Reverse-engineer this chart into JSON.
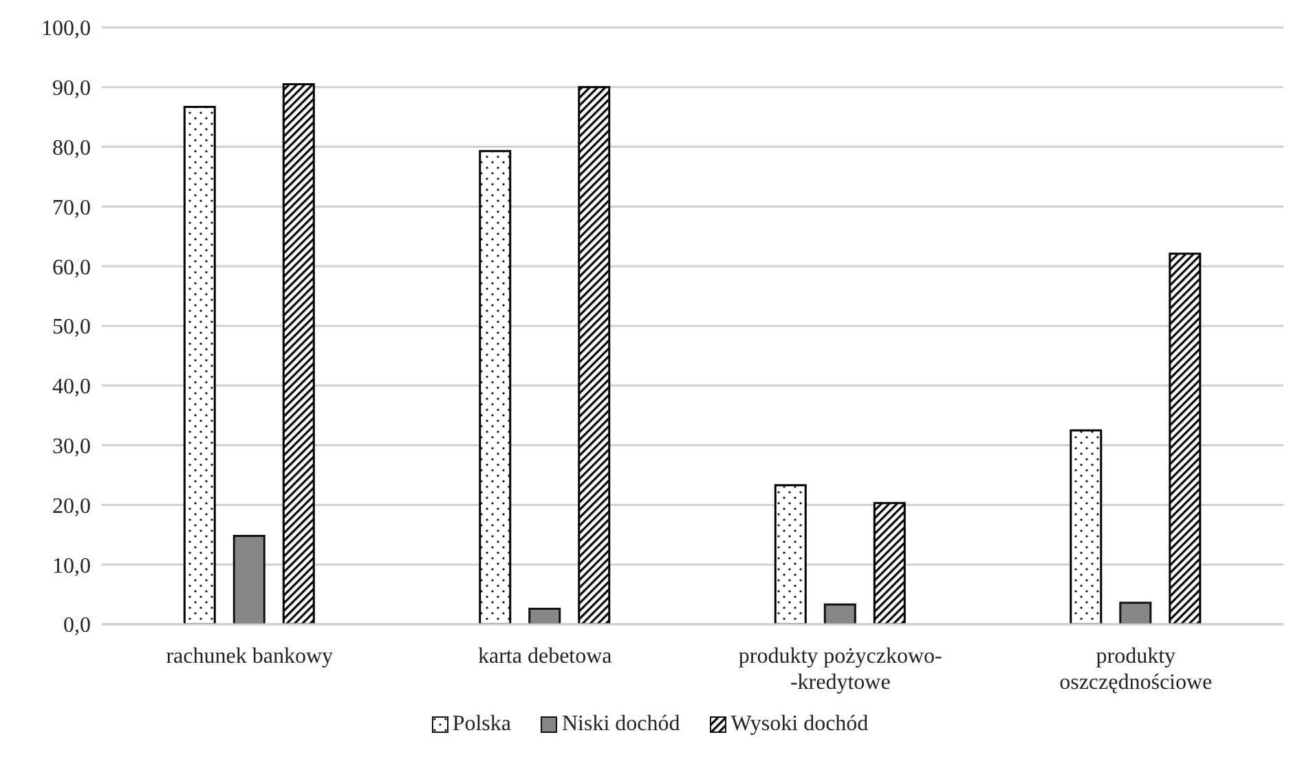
{
  "chart_data": {
    "type": "bar",
    "categories": [
      "rachunek bankowy",
      "karta debetowa",
      "produkty pożyczkowo-\n-kredytowe",
      "produkty\noszczędnościowe"
    ],
    "series": [
      {
        "name": "Polska",
        "color": "#000000",
        "values": [
          86.7,
          79.3,
          23.3,
          32.5
        ]
      },
      {
        "name": "Niski dochód",
        "color": "#878787",
        "values": [
          14.8,
          2.6,
          3.3,
          3.6
        ]
      },
      {
        "name": "Wysoki dochód",
        "color": "#000000",
        "values": [
          90.5,
          90.0,
          20.3,
          62.1
        ]
      }
    ],
    "ylim": [
      0,
      100
    ],
    "yticks": [
      {
        "value": 0,
        "label": "0,0"
      },
      {
        "value": 10,
        "label": "10,0"
      },
      {
        "value": 20,
        "label": "20,0"
      },
      {
        "value": 30,
        "label": "30,0"
      },
      {
        "value": 40,
        "label": "40,0"
      },
      {
        "value": 50,
        "label": "50,0"
      },
      {
        "value": 60,
        "label": "60,0"
      },
      {
        "value": 70,
        "label": "70,0"
      },
      {
        "value": 80,
        "label": "80,0"
      },
      {
        "value": 90,
        "label": "90,0"
      },
      {
        "value": 100,
        "label": "100,0"
      }
    ],
    "grid": "y",
    "legend": "bottom"
  }
}
